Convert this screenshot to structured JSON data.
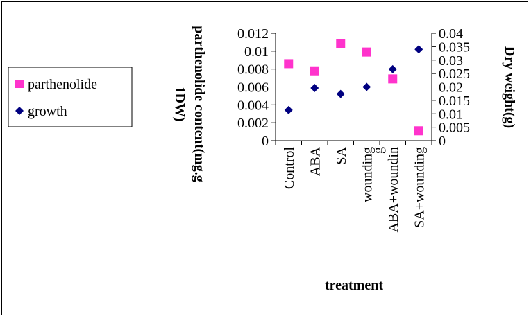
{
  "chart_data": {
    "type": "scatter",
    "categories": [
      "Control",
      "ABA",
      "SA",
      "wounding",
      "ABA+wounding",
      "SA+wounding"
    ],
    "category_label_lines": [
      [
        "Control"
      ],
      [
        "ABA"
      ],
      [
        "SA"
      ],
      [
        "wounding"
      ],
      [
        "ABA+woundin",
        "g"
      ],
      [
        "SA+wounding"
      ]
    ],
    "series": [
      {
        "name": "parthenolide",
        "axis": "left",
        "marker": "square",
        "color": "#ff33cc",
        "values": [
          0.0086,
          0.0078,
          0.0108,
          0.0099,
          0.0069,
          0.0011
        ]
      },
      {
        "name": "growth",
        "axis": "right",
        "marker": "diamond",
        "color": "#000080",
        "values": [
          0.0114,
          0.0196,
          0.0174,
          0.02,
          0.0266,
          0.034
        ]
      }
    ],
    "xlabel": "treatment",
    "ylabel_left_lines": [
      "parthenolide content(mg.g",
      "1DW)"
    ],
    "ylabel_right": "Dry weight(g)",
    "ylim_left": [
      0,
      0.012
    ],
    "yticks_left": [
      "0.012",
      "0.01",
      "0.008",
      "0.006",
      "0.004",
      "0.002",
      "0"
    ],
    "ylim_right": [
      0,
      0.04
    ],
    "yticks_right": [
      "0.04",
      "0.035",
      "0.03",
      "0.025",
      "0.02",
      "0.015",
      "0.01",
      "0.005",
      "0"
    ],
    "grid": false,
    "legend_position": "left"
  }
}
